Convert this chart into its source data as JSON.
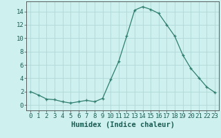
{
  "x": [
    0,
    1,
    2,
    3,
    4,
    5,
    6,
    7,
    8,
    9,
    10,
    11,
    12,
    13,
    14,
    15,
    16,
    17,
    18,
    19,
    20,
    21,
    22,
    23
  ],
  "y": [
    2.0,
    1.5,
    0.9,
    0.8,
    0.5,
    0.3,
    0.5,
    0.7,
    0.5,
    1.0,
    3.8,
    6.5,
    10.3,
    14.2,
    14.7,
    14.3,
    13.7,
    12.0,
    10.3,
    7.5,
    5.5,
    4.1,
    2.7,
    1.9
  ],
  "line_color": "#2e7d6e",
  "marker": "+",
  "bg_color": "#cef0ee",
  "grid_color": "#b0d8d5",
  "xlabel": "Humidex (Indice chaleur)",
  "xlim": [
    -0.5,
    23.5
  ],
  "ylim": [
    -0.8,
    15.5
  ],
  "yticks": [
    0,
    2,
    4,
    6,
    8,
    10,
    12,
    14
  ],
  "xticks": [
    0,
    1,
    2,
    3,
    4,
    5,
    6,
    7,
    8,
    9,
    10,
    11,
    12,
    13,
    14,
    15,
    16,
    17,
    18,
    19,
    20,
    21,
    22,
    23
  ],
  "xtick_labels": [
    "0",
    "1",
    "2",
    "3",
    "4",
    "5",
    "6",
    "7",
    "8",
    "9",
    "10",
    "11",
    "12",
    "13",
    "14",
    "15",
    "16",
    "17",
    "18",
    "19",
    "20",
    "21",
    "22",
    "23"
  ],
  "tick_fontsize": 6.5,
  "xlabel_fontsize": 7.5,
  "tick_color": "#1a5c52",
  "line_width": 0.9,
  "marker_size": 3.0
}
